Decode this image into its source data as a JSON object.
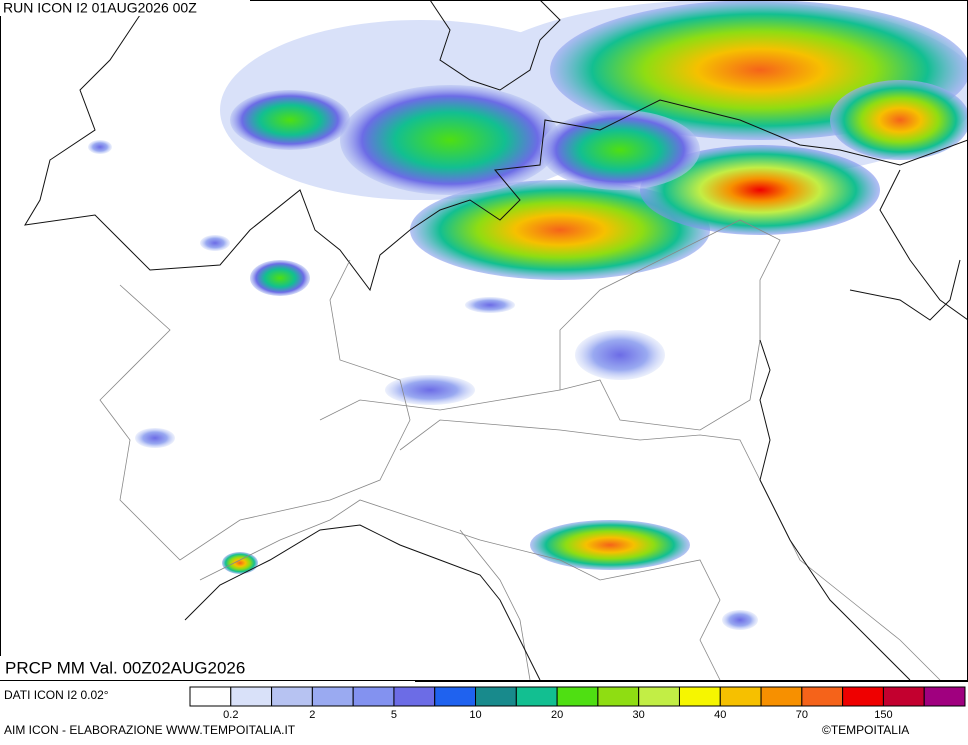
{
  "header": {
    "title": "RUN ICON I2 01AUG2026 00Z"
  },
  "map": {
    "caption": "PRCP MM Val. 00Z02AUG2026"
  },
  "legend": {
    "colors": [
      "#ffffff",
      "#d9e1f9",
      "#b7c3f2",
      "#9aaaf1",
      "#8392f0",
      "#6c6ce6",
      "#1f62ef",
      "#188a8c",
      "#12bf91",
      "#4fdf12",
      "#8fdd12",
      "#c2ee45",
      "#f6f600",
      "#f6c000",
      "#f79000",
      "#f5631a",
      "#ef0000",
      "#c3002f",
      "#a0007f"
    ],
    "ticks": [
      "0.2",
      "2",
      "5",
      "10",
      "20",
      "30",
      "40",
      "70",
      "150"
    ]
  },
  "footer": {
    "source": "DATI ICON I2 0.02°",
    "credit": "AIM ICON - ELABORAZIONE WWW.TEMPOITALIA.IT",
    "copyright": "©TEMPOITALIA"
  }
}
